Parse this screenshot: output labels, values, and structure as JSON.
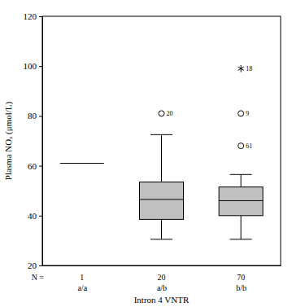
{
  "chart_data": {
    "type": "box",
    "y_label": "Plasma NOₓ (μmol/L)",
    "x_label": "Intron 4 VNTR",
    "categories": [
      "a/a",
      "a/b",
      "b/b"
    ],
    "n_label": "N =",
    "n": [
      1,
      20,
      70
    ],
    "color": "#c0c0c0",
    "ylim": [
      20,
      120
    ],
    "yticks": [
      20,
      40,
      60,
      80,
      100,
      120
    ],
    "boxes": [
      {
        "median": 61
      },
      {
        "whisker_low": 30.5,
        "q1": 38.5,
        "median": 46.5,
        "q3": 53.5,
        "whisker_high": 72.5,
        "outliers": [
          {
            "value": 81,
            "label": "20",
            "marker": "circle"
          }
        ]
      },
      {
        "whisker_low": 30.5,
        "q1": 40,
        "median": 46,
        "q3": 51.5,
        "whisker_high": 56.5,
        "outliers": [
          {
            "value": 68,
            "label": "61",
            "marker": "circle"
          },
          {
            "value": 81,
            "label": "9",
            "marker": "circle"
          },
          {
            "value": 99,
            "label": "18",
            "marker": "asterisk"
          }
        ]
      }
    ]
  }
}
